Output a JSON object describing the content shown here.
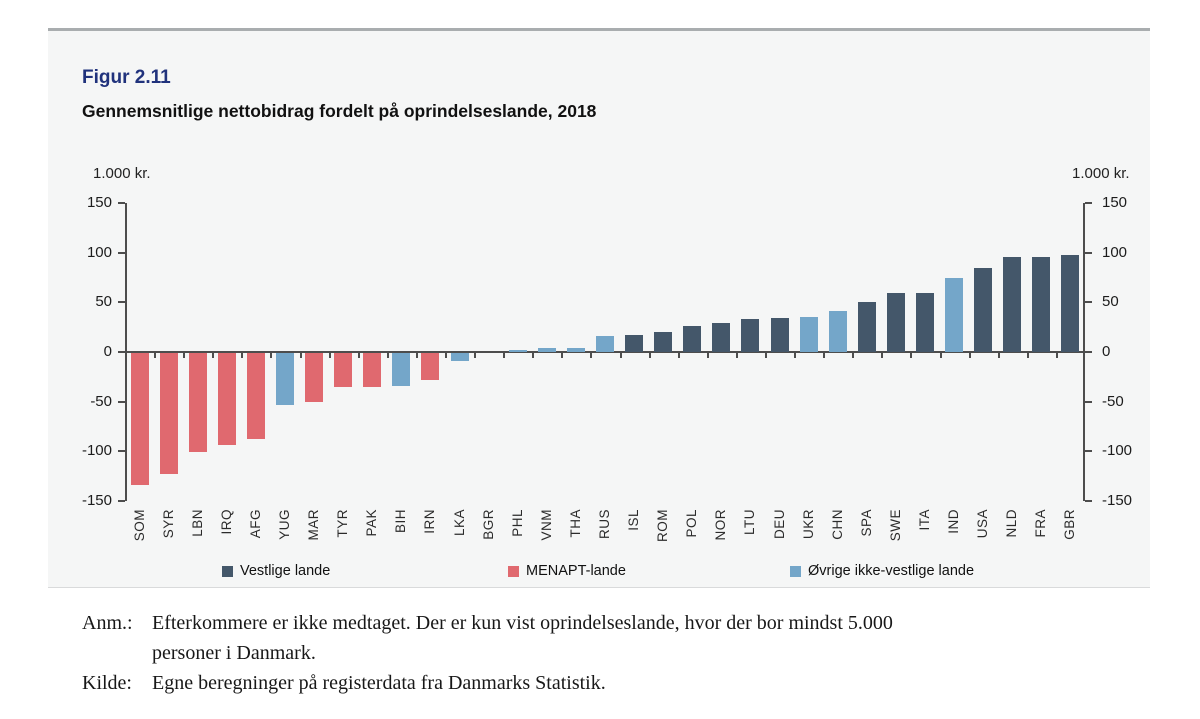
{
  "figure": {
    "label": "Figur 2.11",
    "title": "Gennemsnitlige nettobidrag fordelt på oprindelseslande, 2018"
  },
  "chart_data": {
    "type": "bar",
    "title": "Gennemsnitlige nettobidrag fordelt på oprindelseslande, 2018",
    "unit_label": "1.000 kr.",
    "ylabel": "1.000 kr.",
    "xlabel": "",
    "ylim": [
      -150,
      150
    ],
    "yticks": [
      150,
      100,
      50,
      0,
      -50,
      -100,
      -150
    ],
    "grid": false,
    "legend_position": "bottom",
    "series": [
      {
        "code": "SOM",
        "value": -133,
        "group": "menapt"
      },
      {
        "code": "SYR",
        "value": -122,
        "group": "menapt"
      },
      {
        "code": "LBN",
        "value": -100,
        "group": "menapt"
      },
      {
        "code": "IRQ",
        "value": -93,
        "group": "menapt"
      },
      {
        "code": "AFG",
        "value": -87,
        "group": "menapt"
      },
      {
        "code": "YUG",
        "value": -52,
        "group": "ovrige"
      },
      {
        "code": "MAR",
        "value": -49,
        "group": "menapt"
      },
      {
        "code": "TYR",
        "value": -34,
        "group": "menapt"
      },
      {
        "code": "PAK",
        "value": -34,
        "group": "menapt"
      },
      {
        "code": "BIH",
        "value": -33,
        "group": "ovrige"
      },
      {
        "code": "IRN",
        "value": -27,
        "group": "menapt"
      },
      {
        "code": "LKA",
        "value": -8,
        "group": "ovrige"
      },
      {
        "code": "BGR",
        "value": 0,
        "group": "vestlige"
      },
      {
        "code": "PHL",
        "value": 2,
        "group": "ovrige"
      },
      {
        "code": "VNM",
        "value": 4,
        "group": "ovrige"
      },
      {
        "code": "THA",
        "value": 4,
        "group": "ovrige"
      },
      {
        "code": "RUS",
        "value": 16,
        "group": "ovrige"
      },
      {
        "code": "ISL",
        "value": 17,
        "group": "vestlige"
      },
      {
        "code": "ROM",
        "value": 20,
        "group": "vestlige"
      },
      {
        "code": "POL",
        "value": 26,
        "group": "vestlige"
      },
      {
        "code": "NOR",
        "value": 29,
        "group": "vestlige"
      },
      {
        "code": "LTU",
        "value": 33,
        "group": "vestlige"
      },
      {
        "code": "DEU",
        "value": 34,
        "group": "vestlige"
      },
      {
        "code": "UKR",
        "value": 35,
        "group": "ovrige"
      },
      {
        "code": "CHN",
        "value": 41,
        "group": "ovrige"
      },
      {
        "code": "SPA",
        "value": 50,
        "group": "vestlige"
      },
      {
        "code": "SWE",
        "value": 59,
        "group": "vestlige"
      },
      {
        "code": "ITA",
        "value": 59,
        "group": "vestlige"
      },
      {
        "code": "IND",
        "value": 75,
        "group": "ovrige"
      },
      {
        "code": "USA",
        "value": 85,
        "group": "vestlige"
      },
      {
        "code": "NLD",
        "value": 96,
        "group": "vestlige"
      },
      {
        "code": "FRA",
        "value": 96,
        "group": "vestlige"
      },
      {
        "code": "GBR",
        "value": 98,
        "group": "vestlige"
      }
    ],
    "legend": [
      {
        "key": "vestlige",
        "label": "Vestlige lande",
        "color": "#44576a"
      },
      {
        "key": "menapt",
        "label": "MENAPT-lande",
        "color": "#e0696f"
      },
      {
        "key": "ovrige",
        "label": "Øvrige ikke-vestlige lande",
        "color": "#74a6c9"
      }
    ]
  },
  "colors": {
    "card_background": "#f5f6f6",
    "card_top_border": "#a9adaf",
    "axis": "#4d4d4d",
    "figure_label": "#20327c"
  },
  "notes": {
    "anm_label": "Anm.:",
    "anm_line1": "Efterkommere er ikke medtaget. Der er kun vist oprindelseslande, hvor der bor mindst 5.000",
    "anm_line2": "personer i Danmark.",
    "kilde_label": "Kilde:",
    "kilde_text": "Egne beregninger på registerdata fra Danmarks Statistik."
  }
}
